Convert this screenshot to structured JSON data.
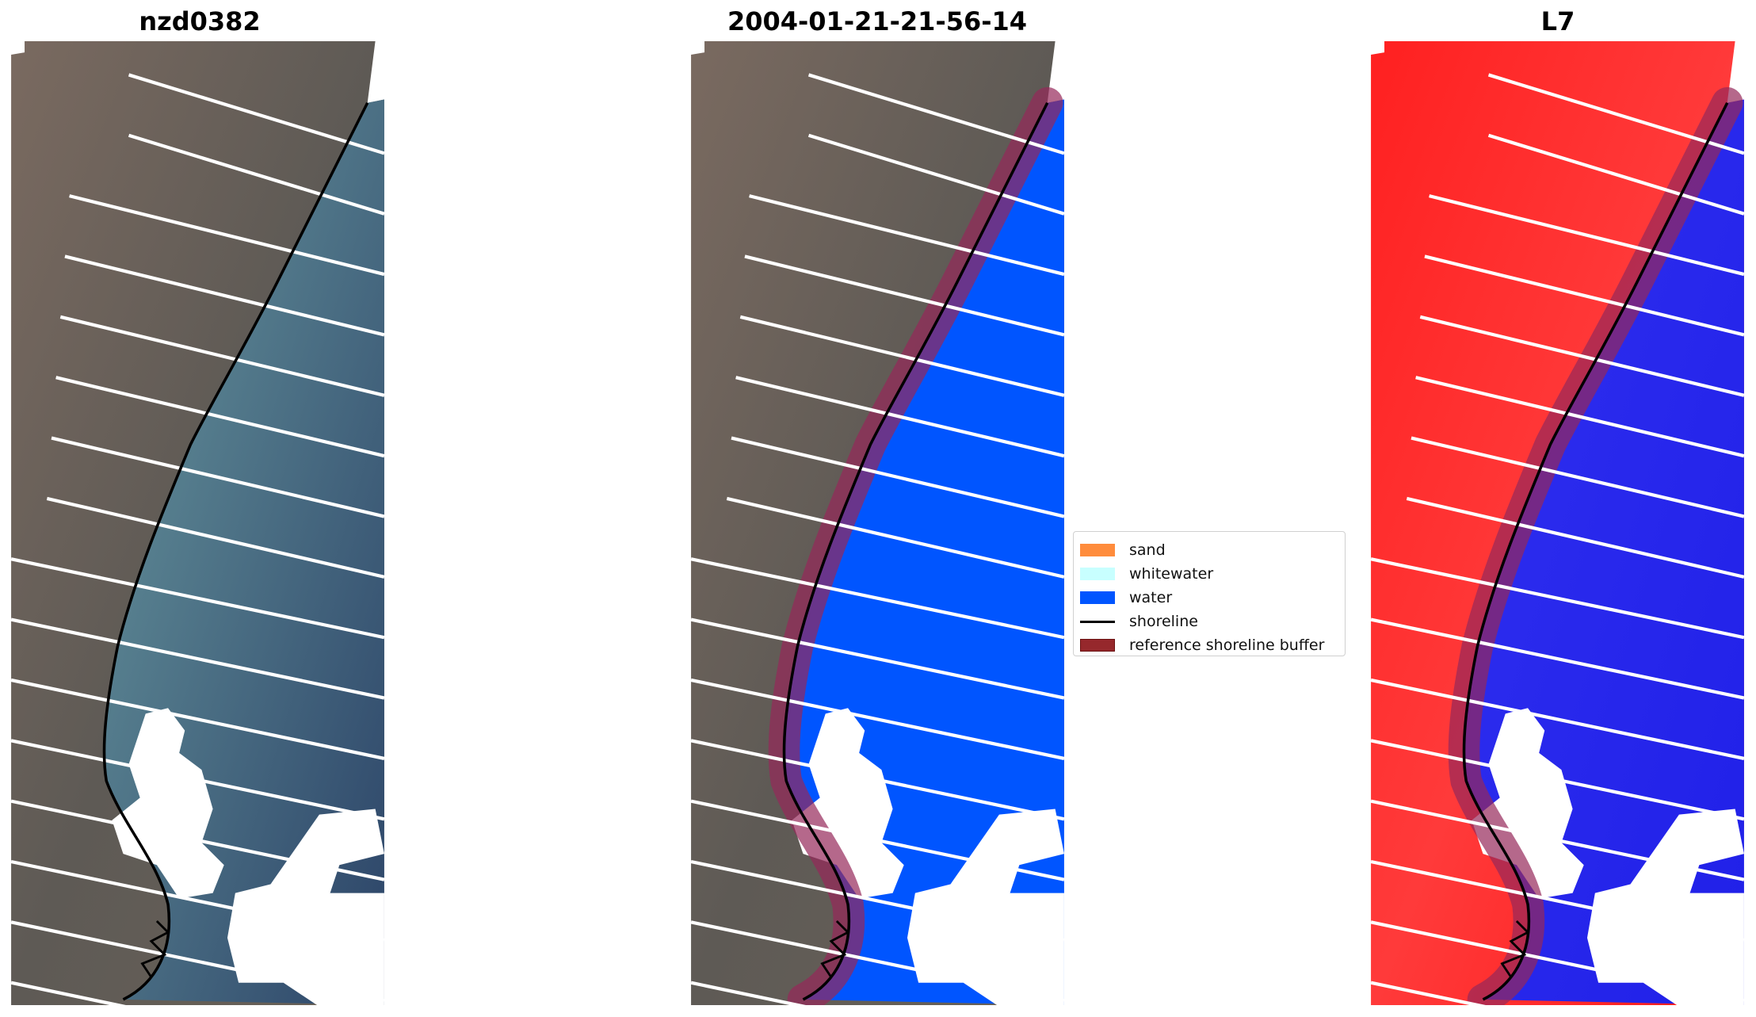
{
  "panels": [
    {
      "title": "nzd0382",
      "mode": "rgb"
    },
    {
      "title": "2004-01-21-21-56-14",
      "mode": "classified"
    },
    {
      "title": "L7",
      "mode": "index"
    }
  ],
  "legend": {
    "items": [
      {
        "label": "sand",
        "color": "#ff8c3c"
      },
      {
        "label": "whitewater",
        "color": "#c8ffff"
      },
      {
        "label": "water",
        "color": "#0055ff"
      },
      {
        "label": "shoreline",
        "color": "#000000",
        "kind": "line"
      },
      {
        "label": "reference shoreline buffer",
        "color": "#96282c"
      }
    ]
  }
}
